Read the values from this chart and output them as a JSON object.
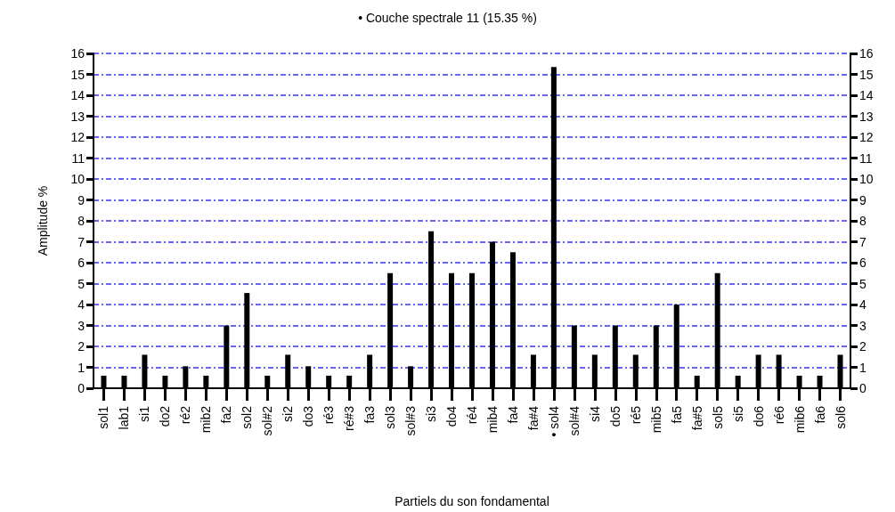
{
  "chart_data": {
    "type": "bar",
    "title": "• Couche spectrale 11 (15.35 %)",
    "xlabel": "Partiels du son fondamental",
    "ylabel": "Amplitude %",
    "categories": [
      "sol1",
      "lab1",
      "si1",
      "do2",
      "ré2",
      "mib2",
      "fa2",
      "sol2",
      "sol#2",
      "si2",
      "do3",
      "ré3",
      "ré#3",
      "fa3",
      "sol3",
      "sol#3",
      "si3",
      "do4",
      "ré4",
      "mib4",
      "fa4",
      "fa#4",
      "• sol4",
      "sol#4",
      "si4",
      "do5",
      "ré5",
      "mib5",
      "fa5",
      "fa#5",
      "sol5",
      "si5",
      "do6",
      "ré6",
      "mib6",
      "fa6",
      "sol6"
    ],
    "values": [
      0.6,
      0.6,
      1.6,
      0.6,
      1.05,
      0.6,
      3,
      4.55,
      0.6,
      1.6,
      1.05,
      0.6,
      0.6,
      1.6,
      5.5,
      1.05,
      7.5,
      5.5,
      5.5,
      7,
      6.5,
      1.6,
      15.35,
      3,
      1.6,
      3,
      1.6,
      3,
      4,
      0.6,
      5.5,
      0.6,
      1.6,
      1.6,
      0.6,
      0.6,
      1.6
    ],
    "color": "#000000",
    "ylim": [
      0,
      16
    ],
    "yticks": [
      0,
      1,
      2,
      3,
      4,
      5,
      6,
      7,
      8,
      9,
      10,
      11,
      12,
      13,
      14,
      15,
      16
    ],
    "y2lim": [
      0,
      16
    ],
    "y2ticks": [
      0,
      1,
      2,
      3,
      4,
      5,
      6,
      7,
      8,
      9,
      10,
      11,
      12,
      13,
      14,
      15,
      16
    ],
    "grid": "y"
  }
}
